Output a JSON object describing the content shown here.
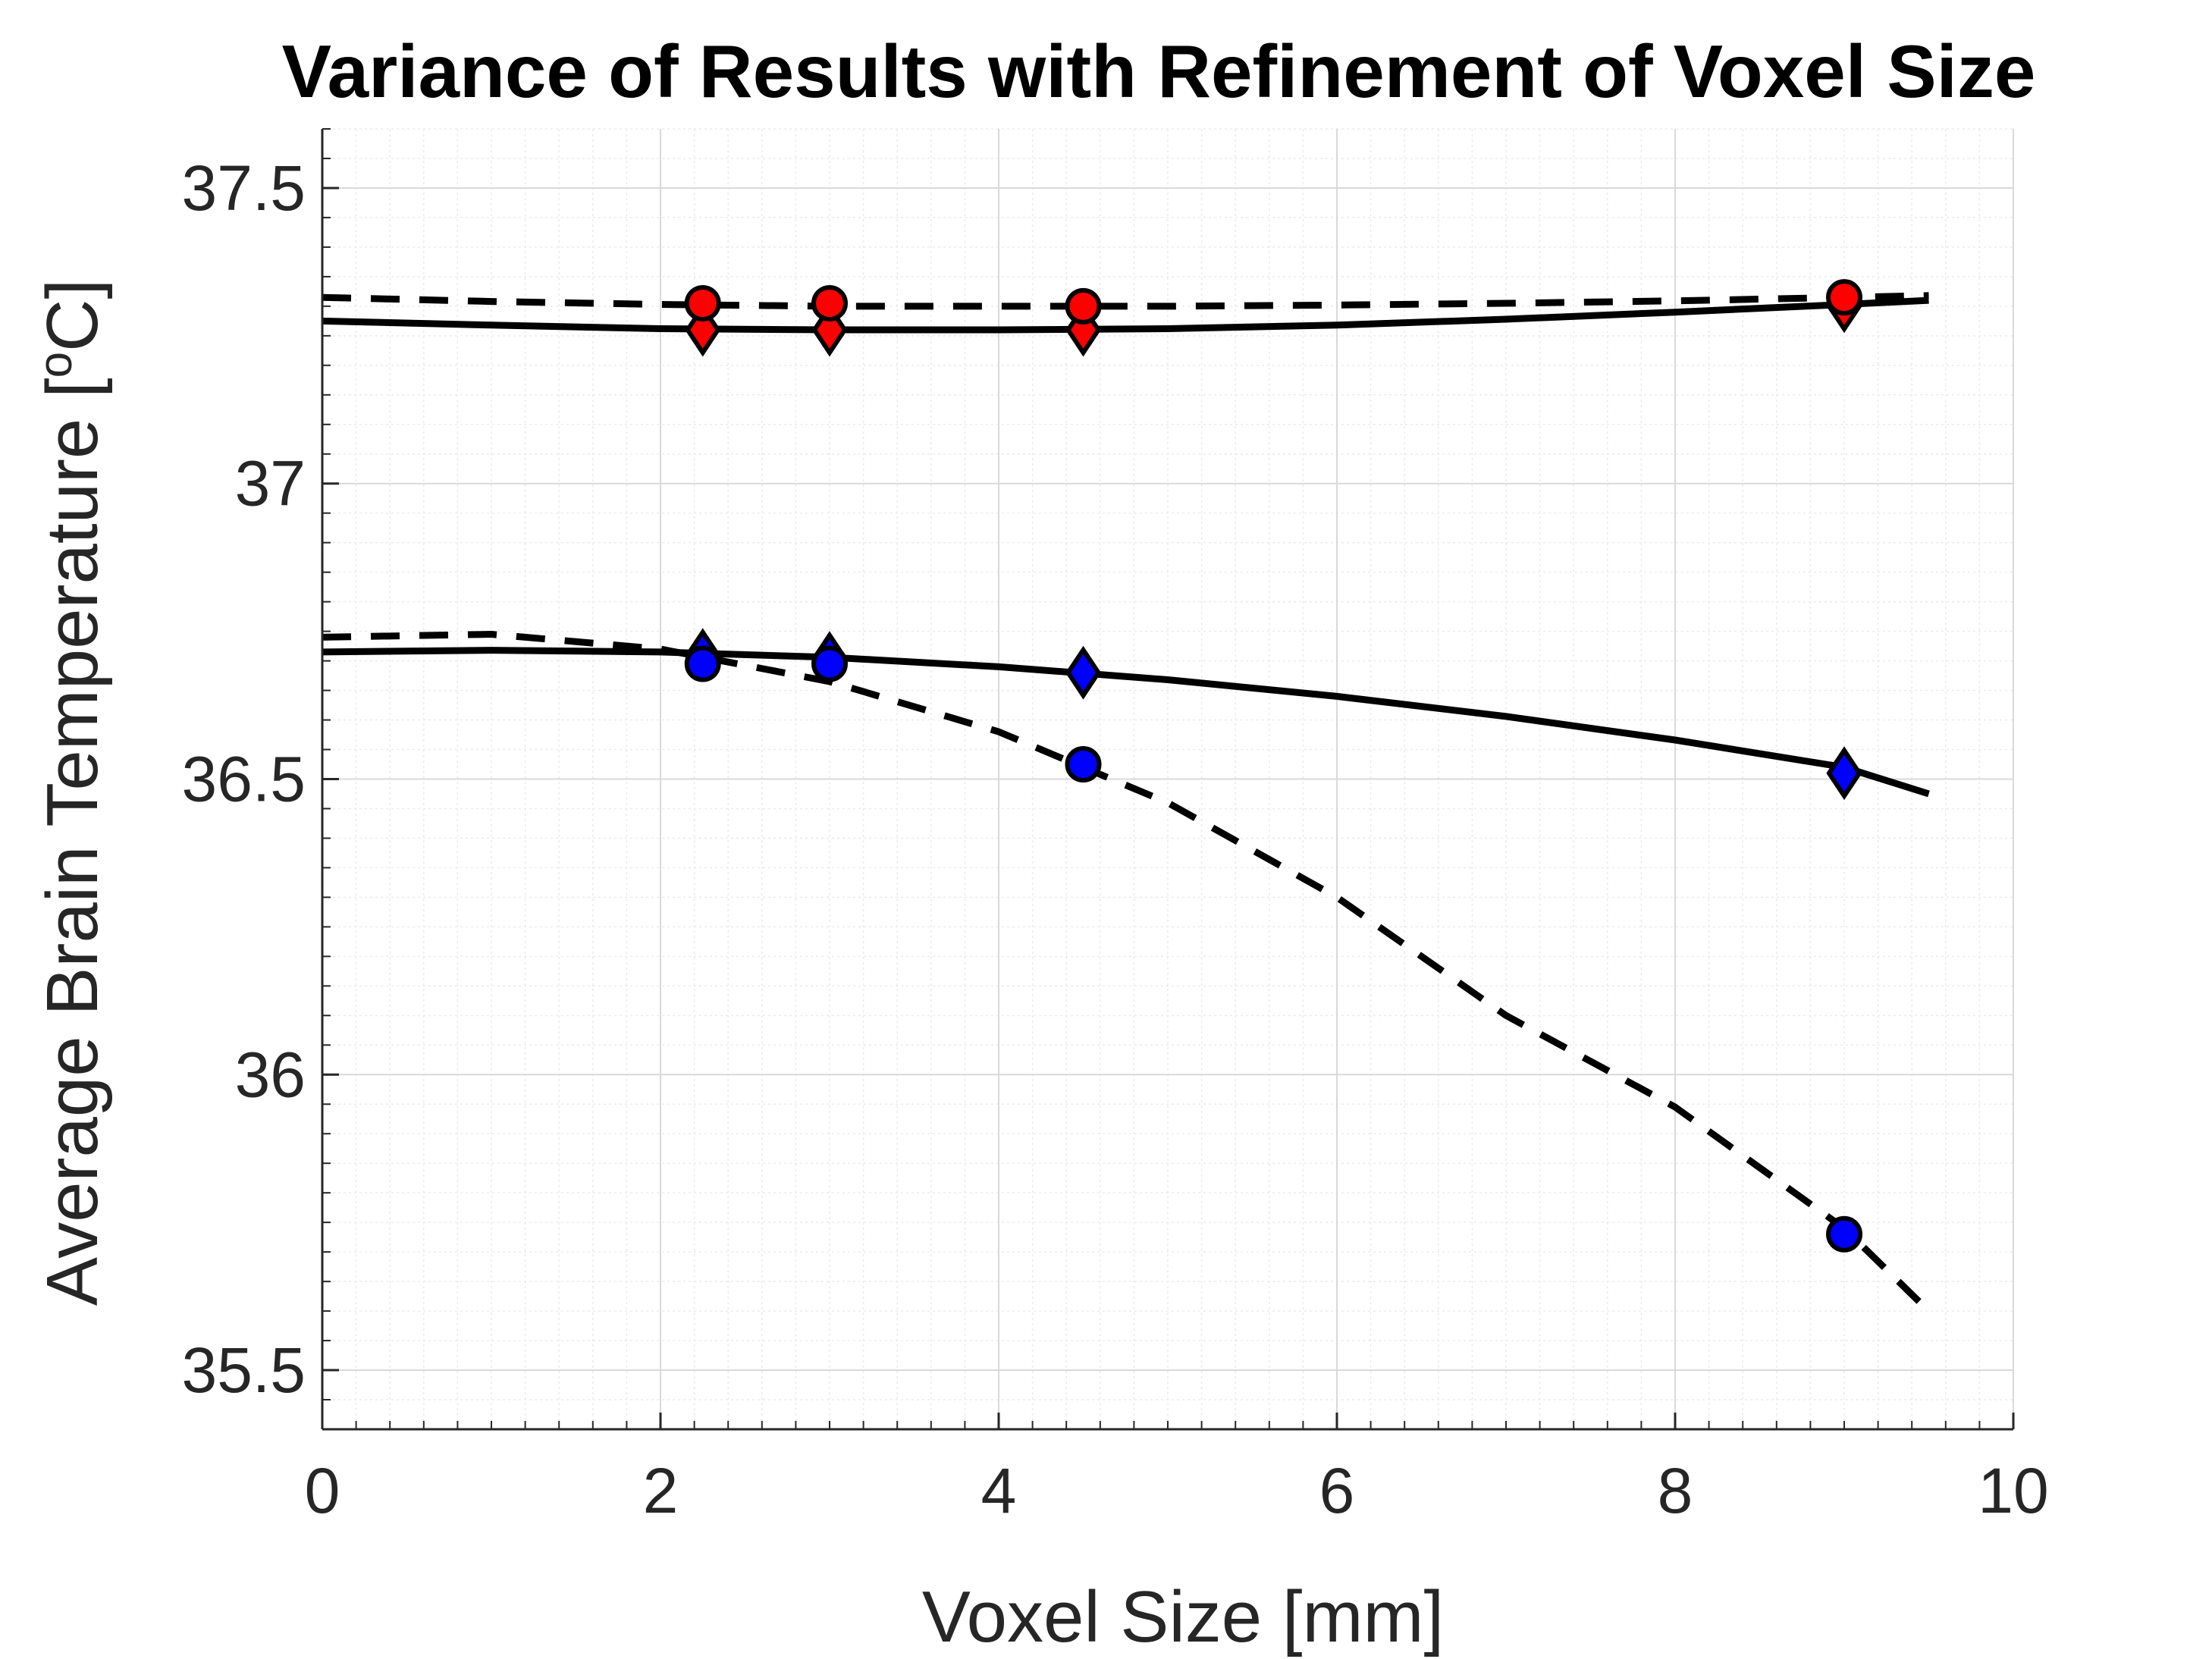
{
  "chart_data": {
    "type": "line",
    "title": "Variance of Results with Refinement of Voxel Size",
    "xlabel": "Voxel Size [mm]",
    "ylabel_main": "Average Brain Temperature [",
    "ylabel_sup": "o",
    "ylabel_end": "C]",
    "xlim": [
      0,
      10
    ],
    "ylim": [
      35.4,
      37.6
    ],
    "xticks": [
      0,
      2,
      4,
      6,
      8,
      10
    ],
    "xtick_labels": [
      "0",
      "2",
      "4",
      "6",
      "8",
      "10"
    ],
    "yticks": [
      35.5,
      36,
      36.5,
      37,
      37.5
    ],
    "ytick_labels": [
      "35.5",
      "36",
      "36.5",
      "37",
      "37.5"
    ],
    "grid": true,
    "minor_grid": true,
    "legend": "none",
    "colors": {
      "red": "#ff0000",
      "blue": "#0000ff",
      "line": "#000000",
      "grid": "#d9d9d9",
      "axis": "#262626"
    },
    "markers": [
      {
        "marker": "diamond",
        "color": "#ff0000",
        "x": [
          2.25,
          3,
          4.5,
          9
        ],
        "y": [
          37.26,
          37.26,
          37.26,
          37.3
        ]
      },
      {
        "marker": "circle",
        "color": "#ff0000",
        "x": [
          2.25,
          3,
          4.5,
          9
        ],
        "y": [
          37.305,
          37.305,
          37.3,
          37.315
        ]
      },
      {
        "marker": "diamond",
        "color": "#0000ff",
        "x": [
          2.25,
          3,
          4.5,
          9
        ],
        "y": [
          36.71,
          36.705,
          36.68,
          36.51
        ]
      },
      {
        "marker": "circle",
        "color": "#0000ff",
        "x": [
          2.25,
          3,
          4.5,
          9
        ],
        "y": [
          36.695,
          36.695,
          36.525,
          35.73
        ]
      }
    ],
    "curves": [
      {
        "style": "solid",
        "x": [
          0,
          1,
          2,
          3,
          4,
          5,
          6,
          7,
          8,
          9,
          9.5
        ],
        "y": [
          37.275,
          37.268,
          37.262,
          37.26,
          37.26,
          37.262,
          37.268,
          37.278,
          37.29,
          37.303,
          37.31
        ]
      },
      {
        "style": "dashed",
        "x": [
          0,
          1,
          2,
          3,
          4,
          5,
          6,
          7,
          8,
          9,
          9.5
        ],
        "y": [
          37.315,
          37.308,
          37.303,
          37.3,
          37.3,
          37.3,
          37.302,
          37.305,
          37.309,
          37.315,
          37.318
        ]
      },
      {
        "style": "solid",
        "x": [
          0,
          1,
          2,
          3,
          4,
          5,
          6,
          7,
          8,
          9,
          9.5
        ],
        "y": [
          36.715,
          36.718,
          36.715,
          36.706,
          36.69,
          36.668,
          36.64,
          36.606,
          36.566,
          36.52,
          36.475
        ]
      },
      {
        "style": "dashed",
        "x": [
          0,
          1,
          2,
          3,
          4,
          5,
          6,
          7,
          8,
          9,
          9.5
        ],
        "y": [
          36.74,
          36.745,
          36.72,
          36.665,
          36.58,
          36.46,
          36.3,
          36.1,
          35.945,
          35.74,
          35.6
        ]
      }
    ]
  }
}
